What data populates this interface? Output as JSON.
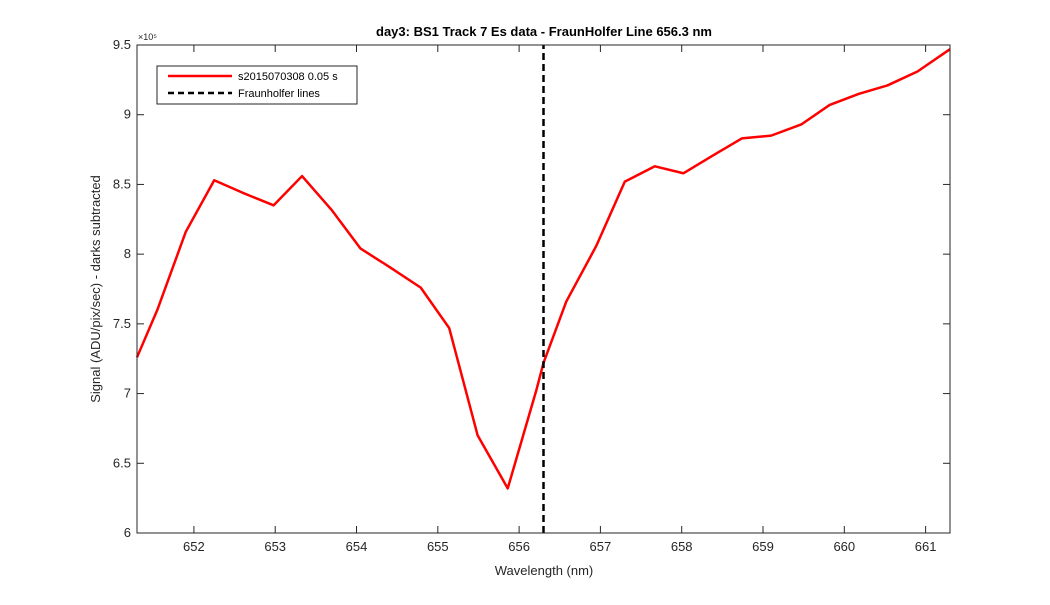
{
  "chart_data": {
    "type": "line",
    "title": "day3: BS1  Track 7 Es data - FraunHolfer Line 656.3 nm",
    "xlabel": "Wavelength (nm)",
    "ylabel": "Signal (ADU/pix/sec) - darks subtracted",
    "y_exponent_label": "×10⁵",
    "xlim": [
      651.3,
      661.3
    ],
    "ylim": [
      6.0,
      9.5
    ],
    "xticks": [
      652,
      653,
      654,
      655,
      656,
      657,
      658,
      659,
      660,
      661
    ],
    "xtick_labels": [
      "652",
      "653",
      "654",
      "655",
      "656",
      "657",
      "658",
      "659",
      "660",
      "661"
    ],
    "yticks": [
      6.0,
      6.5,
      7.0,
      7.5,
      8.0,
      8.5,
      9.0,
      9.5
    ],
    "ytick_labels": [
      "6",
      "6.5",
      "7",
      "7.5",
      "8",
      "8.5",
      "9",
      "9.5"
    ],
    "grid": false,
    "legend_position": "top-left",
    "series": [
      {
        "name": "s2015070308 0.05 s",
        "color": "#ff0000",
        "style": "solid",
        "x": [
          651.3,
          651.55,
          651.9,
          652.25,
          652.6,
          652.98,
          653.33,
          653.69,
          654.05,
          654.4,
          654.79,
          655.14,
          655.49,
          655.86,
          656.21,
          656.3,
          656.58,
          656.95,
          657.3,
          657.67,
          658.02,
          658.39,
          658.74,
          659.1,
          659.47,
          659.82,
          660.18,
          660.53,
          660.9,
          661.3
        ],
        "values": [
          7.26,
          7.6,
          8.16,
          8.53,
          8.44,
          8.35,
          8.56,
          8.32,
          8.04,
          7.91,
          7.76,
          7.47,
          6.7,
          6.32,
          7.02,
          7.22,
          7.66,
          8.06,
          8.52,
          8.63,
          8.58,
          8.71,
          8.83,
          8.85,
          8.93,
          9.07,
          9.15,
          9.21,
          9.31,
          9.47
        ]
      },
      {
        "name": "Fraunholfer lines",
        "color": "#000000",
        "style": "dashed",
        "x": [
          656.3,
          656.3
        ],
        "values": [
          6.0,
          9.5
        ]
      }
    ]
  }
}
